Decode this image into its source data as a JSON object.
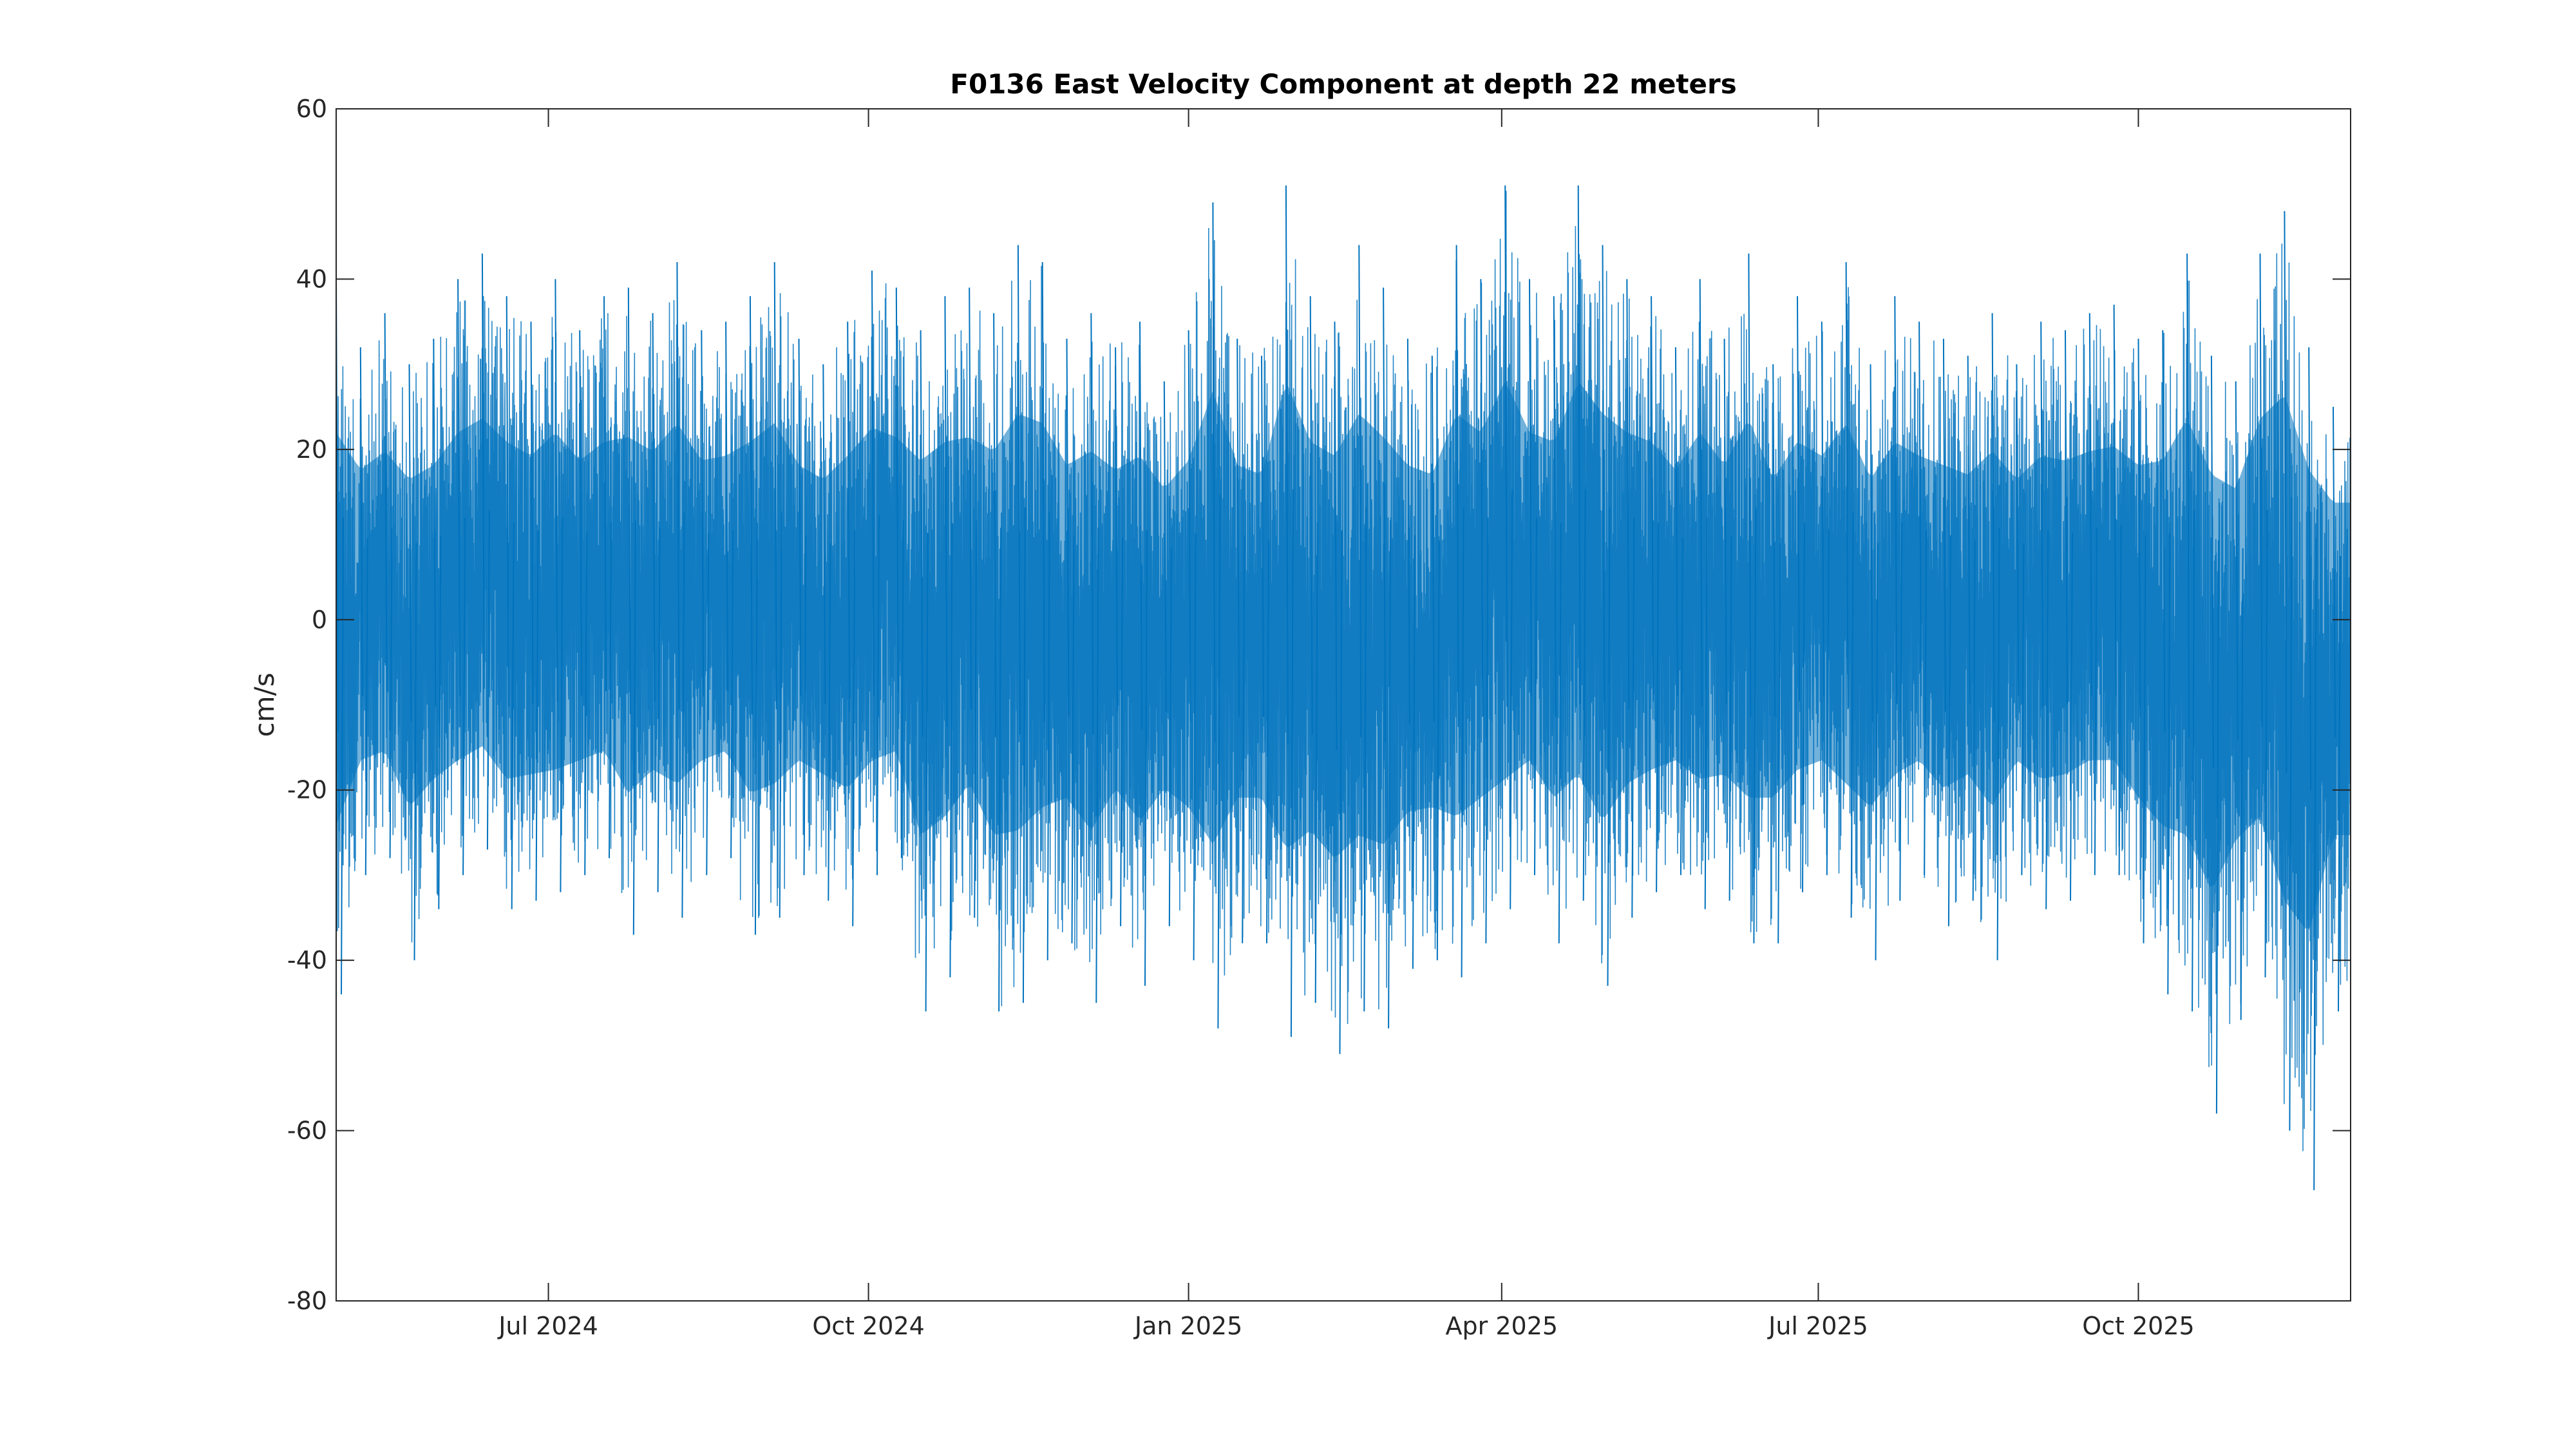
{
  "chart_data": {
    "type": "line",
    "title": "F0136 East Velocity Component at depth 22 meters",
    "xlabel": "",
    "ylabel": "cm/s",
    "xlim": [
      "2024-05-01",
      "2025-12-01"
    ],
    "ylim": [
      -80,
      60
    ],
    "grid": false,
    "legend": "none",
    "line_color": "#0072BD",
    "x_ticks": [
      {
        "date": "2024-07-01",
        "label": "Jul 2024"
      },
      {
        "date": "2024-10-01",
        "label": "Oct 2024"
      },
      {
        "date": "2025-01-01",
        "label": "Jan 2025"
      },
      {
        "date": "2025-04-01",
        "label": "Apr 2025"
      },
      {
        "date": "2025-07-01",
        "label": "Jul 2025"
      },
      {
        "date": "2025-10-01",
        "label": "Oct 2025"
      }
    ],
    "y_ticks": [
      {
        "value": 60,
        "label": "60"
      },
      {
        "value": 40,
        "label": "40"
      },
      {
        "value": 20,
        "label": "20"
      },
      {
        "value": 0,
        "label": "0"
      },
      {
        "value": -20,
        "label": "-20"
      },
      {
        "value": -40,
        "label": "-40"
      },
      {
        "value": -60,
        "label": "-60"
      },
      {
        "value": -80,
        "label": "-80"
      }
    ],
    "series": [
      {
        "x": [
          "2024-05-01",
          "2024-05-08",
          "2024-05-15",
          "2024-05-22",
          "2024-05-29",
          "2024-06-05",
          "2024-06-12",
          "2024-06-19",
          "2024-06-26",
          "2024-07-03",
          "2024-07-10",
          "2024-07-17",
          "2024-07-24",
          "2024-07-31",
          "2024-08-07",
          "2024-08-14",
          "2024-08-21",
          "2024-08-28",
          "2024-09-04",
          "2024-09-11",
          "2024-09-18",
          "2024-09-25",
          "2024-10-02",
          "2024-10-09",
          "2024-10-16",
          "2024-10-23",
          "2024-10-30",
          "2024-11-06",
          "2024-11-13",
          "2024-11-20",
          "2024-11-27",
          "2024-12-04",
          "2024-12-11",
          "2024-12-18",
          "2024-12-25",
          "2025-01-01",
          "2025-01-08",
          "2025-01-15",
          "2025-01-22",
          "2025-01-29",
          "2025-02-05",
          "2025-02-12",
          "2025-02-19",
          "2025-02-26",
          "2025-03-05",
          "2025-03-12",
          "2025-03-19",
          "2025-03-26",
          "2025-04-02",
          "2025-04-09",
          "2025-04-16",
          "2025-04-23",
          "2025-04-30",
          "2025-05-07",
          "2025-05-14",
          "2025-05-21",
          "2025-05-28",
          "2025-06-04",
          "2025-06-11",
          "2025-06-18",
          "2025-06-25",
          "2025-07-02",
          "2025-07-09",
          "2025-07-16",
          "2025-07-23",
          "2025-07-30",
          "2025-08-06",
          "2025-08-13",
          "2025-08-20",
          "2025-08-27",
          "2025-09-03",
          "2025-09-10",
          "2025-09-17",
          "2025-09-24",
          "2025-10-01",
          "2025-10-08",
          "2025-10-15",
          "2025-10-22",
          "2025-10-29",
          "2025-11-05",
          "2025-11-12",
          "2025-11-19",
          "2025-11-26"
        ],
        "upper": [
          40,
          32,
          36,
          30,
          33,
          40,
          43,
          38,
          35,
          40,
          34,
          38,
          39,
          36,
          42,
          34,
          35,
          38,
          42,
          33,
          30,
          35,
          41,
          39,
          34,
          38,
          39,
          36,
          44,
          42,
          33,
          36,
          32,
          35,
          28,
          34,
          49,
          33,
          31,
          51,
          38,
          35,
          44,
          39,
          33,
          31,
          44,
          40,
          51,
          40,
          38,
          51,
          44,
          40,
          38,
          32,
          40,
          33,
          43,
          30,
          38,
          35,
          42,
          30,
          38,
          35,
          33,
          31,
          36,
          30,
          35,
          34,
          36,
          37,
          33,
          34,
          43,
          31,
          28,
          43,
          48,
          32,
          25
        ],
        "lower": [
          -44,
          -30,
          -28,
          -40,
          -34,
          -30,
          -27,
          -34,
          -33,
          -32,
          -30,
          -28,
          -37,
          -32,
          -35,
          -30,
          -28,
          -37,
          -35,
          -30,
          -33,
          -36,
          -30,
          -28,
          -46,
          -42,
          -35,
          -46,
          -45,
          -40,
          -38,
          -45,
          -36,
          -43,
          -36,
          -40,
          -48,
          -38,
          -38,
          -49,
          -45,
          -51,
          -46,
          -48,
          -41,
          -40,
          -42,
          -38,
          -34,
          -30,
          -38,
          -33,
          -43,
          -35,
          -32,
          -30,
          -34,
          -33,
          -38,
          -38,
          -32,
          -30,
          -35,
          -40,
          -33,
          -30,
          -36,
          -33,
          -40,
          -30,
          -34,
          -33,
          -30,
          -30,
          -38,
          -44,
          -46,
          -58,
          -47,
          -42,
          -60,
          -67,
          -46
        ]
      }
    ]
  }
}
